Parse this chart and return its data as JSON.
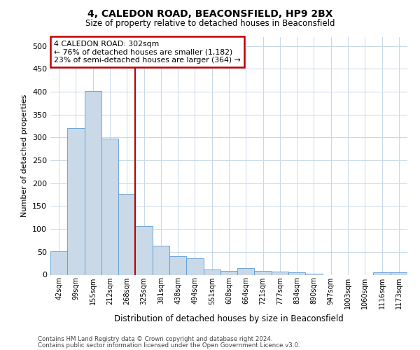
{
  "title1": "4, CALEDON ROAD, BEACONSFIELD, HP9 2BX",
  "title2": "Size of property relative to detached houses in Beaconsfield",
  "xlabel": "Distribution of detached houses by size in Beaconsfield",
  "ylabel": "Number of detached properties",
  "categories": [
    "42sqm",
    "99sqm",
    "155sqm",
    "212sqm",
    "268sqm",
    "325sqm",
    "381sqm",
    "438sqm",
    "494sqm",
    "551sqm",
    "608sqm",
    "664sqm",
    "721sqm",
    "777sqm",
    "834sqm",
    "890sqm",
    "947sqm",
    "1003sqm",
    "1060sqm",
    "1116sqm",
    "1173sqm"
  ],
  "values": [
    52,
    320,
    402,
    297,
    176,
    107,
    63,
    40,
    36,
    11,
    8,
    14,
    9,
    7,
    5,
    2,
    0,
    0,
    0,
    5,
    5
  ],
  "bar_color": "#c9d9e8",
  "bar_edge_color": "#5b9bd5",
  "vline_x_index": 4.5,
  "vline_color": "#c00000",
  "annotation_box_text": "4 CALEDON ROAD: 302sqm\n← 76% of detached houses are smaller (1,182)\n23% of semi-detached houses are larger (364) →",
  "annotation_box_color": "#c00000",
  "footer1": "Contains HM Land Registry data © Crown copyright and database right 2024.",
  "footer2": "Contains public sector information licensed under the Open Government Licence v3.0.",
  "ylim": [
    0,
    520
  ],
  "yticks": [
    0,
    50,
    100,
    150,
    200,
    250,
    300,
    350,
    400,
    450,
    500
  ],
  "background_color": "#ffffff",
  "grid_color": "#c8d8e8"
}
